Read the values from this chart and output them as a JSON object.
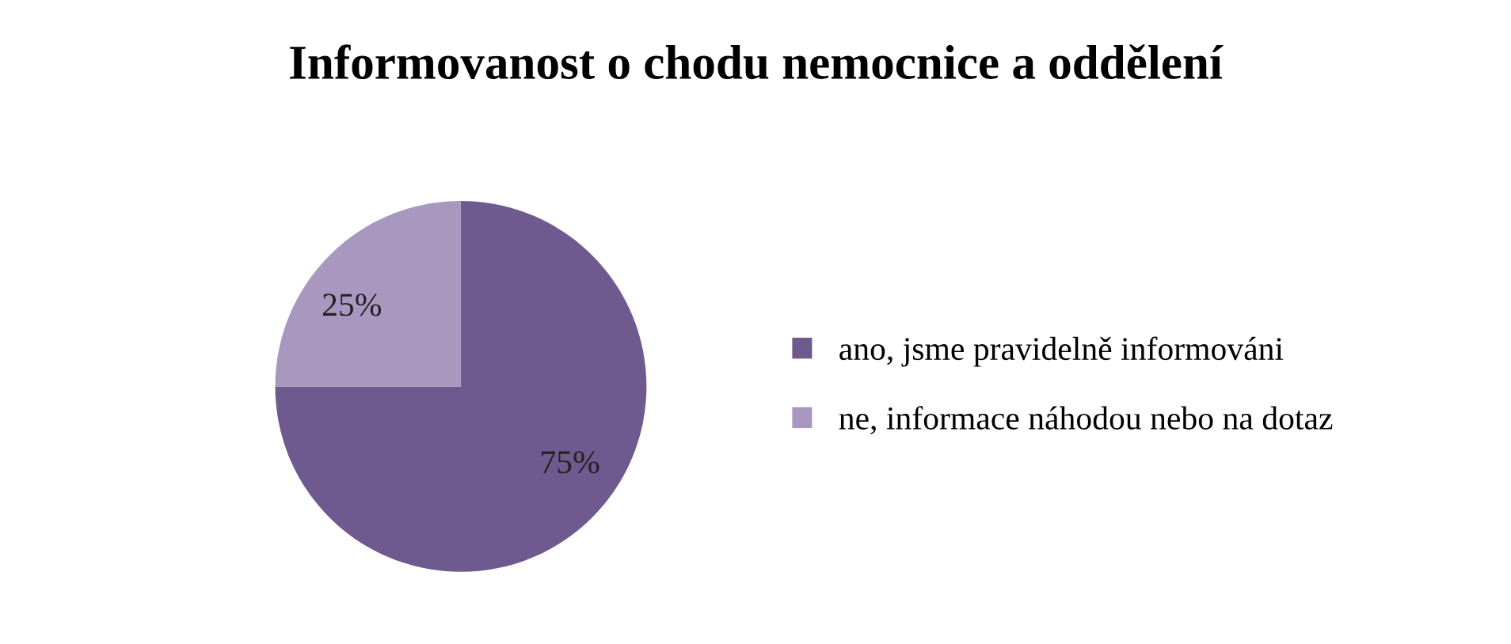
{
  "chart_data": {
    "type": "pie",
    "title": "Informovanost o chodu nemocnice a oddělení",
    "categories": [
      "ano, jsme pravidelně informováni",
      "ne, informace náhodou nebo na dotaz"
    ],
    "values": [
      75,
      25
    ],
    "colors": [
      "#6f5a8f",
      "#a898c0"
    ],
    "value_labels": [
      "75%",
      "25%"
    ],
    "legend": "right"
  }
}
